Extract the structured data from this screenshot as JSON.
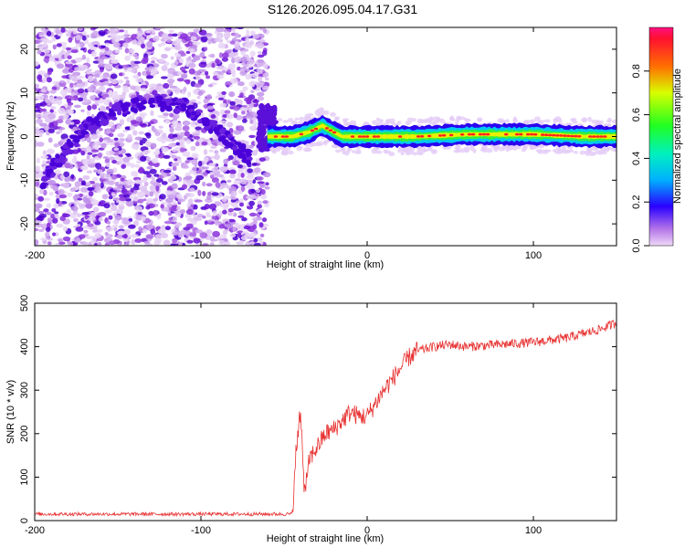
{
  "title": "S126.2026.095.04.17.G31",
  "chart_data": [
    {
      "type": "heatmap",
      "xlabel": "Height of straight line (km)",
      "ylabel": "Frequency (Hz)",
      "xlim": [
        -200,
        150
      ],
      "ylim": [
        -25,
        25
      ],
      "xticks": [
        -200,
        -100,
        0,
        100
      ],
      "yticks": [
        -20,
        -10,
        0,
        10,
        20
      ],
      "colorbar": {
        "label": "Normalized spectral amplitude",
        "range": [
          0,
          1
        ],
        "ticks": [
          "0.0",
          "0.2",
          "0.4",
          "0.6",
          "0.8"
        ]
      },
      "regions": [
        {
          "name": "scattered",
          "x_range": [
            -200,
            -60
          ],
          "description_of_values": "diffuse low-amplitude points across full frequency band"
        },
        {
          "name": "arc",
          "points": [
            [
              -195,
              -10
            ],
            [
              -170,
              2
            ],
            [
              -150,
              6
            ],
            [
              -130,
              8
            ],
            [
              -110,
              7
            ],
            [
              -95,
              3
            ],
            [
              -80,
              -2
            ],
            [
              -70,
              -5
            ]
          ]
        },
        {
          "name": "carrier",
          "points": [
            [
              -60,
              0
            ],
            [
              -45,
              0
            ],
            [
              -35,
              1
            ],
            [
              -27,
              2.5
            ],
            [
              -20,
              1
            ],
            [
              -15,
              0
            ],
            [
              0,
              0
            ],
            [
              30,
              0
            ],
            [
              60,
              0.5
            ],
            [
              100,
              0.5
            ],
            [
              130,
              0
            ],
            [
              150,
              0
            ]
          ]
        }
      ]
    },
    {
      "type": "line",
      "xlabel": "Height of straight line (km)",
      "ylabel": "SNR (10 * v/v)",
      "xlim": [
        -200,
        150
      ],
      "ylim": [
        0,
        500
      ],
      "xticks": [
        -200,
        -100,
        0,
        100
      ],
      "yticks": [
        0,
        100,
        200,
        300,
        400,
        500
      ],
      "color": "#e83232",
      "series": [
        {
          "name": "SNR",
          "x": [
            -200,
            -150,
            -100,
            -60,
            -45,
            -43,
            -40,
            -38,
            -35,
            -30,
            -25,
            -20,
            -15,
            -10,
            -5,
            0,
            10,
            20,
            25,
            30,
            40,
            50,
            60,
            80,
            100,
            120,
            140,
            150
          ],
          "values": [
            15,
            15,
            15,
            15,
            15,
            150,
            260,
            60,
            140,
            170,
            200,
            210,
            230,
            250,
            240,
            240,
            300,
            350,
            375,
            390,
            400,
            405,
            400,
            405,
            410,
            420,
            440,
            455
          ]
        }
      ]
    }
  ]
}
